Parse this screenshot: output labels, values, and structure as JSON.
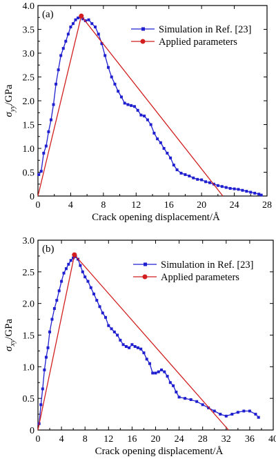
{
  "colors": {
    "simulation": "#1f1fd0",
    "applied": "#d21e1e"
  },
  "chart_data": [
    {
      "type": "line",
      "panel_label": "(a)",
      "xlabel": "Crack opening displacement/Å",
      "ylabel_main": "σ",
      "ylabel_sub": "yy",
      "ylabel_unit": "/GPa",
      "xlim": [
        0,
        28
      ],
      "ylim": [
        0,
        4.0
      ],
      "xticks": [
        "0",
        "4",
        "8",
        "12",
        "16",
        "20",
        "24",
        "28"
      ],
      "yticks": [
        "0",
        "0.5",
        "1.0",
        "1.5",
        "2.0",
        "2.5",
        "3.0",
        "3.5",
        "4.0"
      ],
      "legend_position": "top-right",
      "series": [
        {
          "name": "Simulation in Ref. [23]",
          "marker": "square",
          "color": "#1f1fd0",
          "x": [
            0.1,
            0.4,
            0.7,
            1.0,
            1.3,
            1.6,
            1.9,
            2.2,
            2.5,
            2.8,
            3.1,
            3.4,
            3.7,
            4.0,
            4.3,
            4.6,
            4.9,
            5.2,
            5.5,
            5.8,
            6.2,
            6.6,
            7.0,
            7.4,
            7.8,
            8.2,
            8.6,
            9.0,
            9.4,
            9.8,
            10.2,
            10.6,
            11.0,
            11.4,
            11.8,
            12.2,
            12.6,
            13.0,
            13.4,
            13.8,
            14.2,
            14.6,
            15.0,
            15.4,
            15.8,
            16.2,
            16.6,
            17.0,
            17.5,
            18.0,
            18.5,
            19.0,
            19.5,
            20.0,
            20.5,
            21.0,
            21.5,
            22.0,
            22.5,
            23.0,
            23.5,
            24.0,
            24.5,
            25.0,
            25.5,
            26.0,
            26.5,
            27.0,
            27.3
          ],
          "y": [
            0.45,
            0.52,
            0.9,
            1.05,
            1.35,
            1.6,
            1.92,
            2.35,
            2.65,
            2.95,
            3.1,
            3.25,
            3.4,
            3.55,
            3.62,
            3.7,
            3.74,
            3.76,
            3.72,
            3.68,
            3.7,
            3.62,
            3.55,
            3.4,
            3.2,
            2.95,
            2.7,
            2.5,
            2.35,
            2.2,
            2.08,
            1.95,
            1.92,
            1.9,
            1.88,
            1.8,
            1.7,
            1.68,
            1.6,
            1.5,
            1.32,
            1.2,
            1.12,
            1.0,
            0.9,
            0.8,
            0.65,
            0.55,
            0.48,
            0.45,
            0.42,
            0.38,
            0.35,
            0.34,
            0.3,
            0.28,
            0.25,
            0.22,
            0.2,
            0.18,
            0.16,
            0.15,
            0.14,
            0.12,
            0.1,
            0.08,
            0.06,
            0.04,
            0.02
          ]
        },
        {
          "name": "Applied parameters",
          "marker": "circle",
          "color": "#d21e1e",
          "x": [
            0,
            5.3,
            22.6
          ],
          "y": [
            0,
            3.78,
            0
          ]
        }
      ]
    },
    {
      "type": "line",
      "panel_label": "(b)",
      "xlabel": "Crack opening displacement/Å",
      "ylabel_main": "σ",
      "ylabel_sub": "xy",
      "ylabel_unit": "/GPa",
      "xlim": [
        0,
        40
      ],
      "ylim": [
        0,
        3.0
      ],
      "xticks": [
        "0",
        "4",
        "8",
        "12",
        "16",
        "20",
        "24",
        "28",
        "32",
        "36",
        "40"
      ],
      "yticks": [
        "0",
        "0.5",
        "1.0",
        "1.5",
        "2.0",
        "2.5",
        "3.0"
      ],
      "legend_position": "top-right",
      "series": [
        {
          "name": "Simulation in Ref. [23]",
          "marker": "square",
          "color": "#1f1fd0",
          "x": [
            0.2,
            0.5,
            0.8,
            1.1,
            1.4,
            1.7,
            2.0,
            2.4,
            2.8,
            3.2,
            3.6,
            4.0,
            4.4,
            4.8,
            5.2,
            5.6,
            6.0,
            6.4,
            6.8,
            7.2,
            7.6,
            8.0,
            8.5,
            9.0,
            9.5,
            10.0,
            10.5,
            11.0,
            11.5,
            12.0,
            12.5,
            13.0,
            13.5,
            14.0,
            14.5,
            15.0,
            15.5,
            16.0,
            16.5,
            17.0,
            17.5,
            18.0,
            18.5,
            19.0,
            19.5,
            20.0,
            20.5,
            21.0,
            21.5,
            22.0,
            22.5,
            23.0,
            23.5,
            24.0,
            25.0,
            26.0,
            27.0,
            28.0,
            29.0,
            30.0,
            31.0,
            32.0,
            33.0,
            34.0,
            35.0,
            36.0,
            37.0,
            37.5
          ],
          "y": [
            0.1,
            0.4,
            0.65,
            0.95,
            1.15,
            1.3,
            1.55,
            1.75,
            1.92,
            2.05,
            2.2,
            2.35,
            2.48,
            2.55,
            2.62,
            2.68,
            2.72,
            2.74,
            2.7,
            2.6,
            2.5,
            2.42,
            2.35,
            2.25,
            2.15,
            2.05,
            1.95,
            1.85,
            1.78,
            1.65,
            1.6,
            1.55,
            1.5,
            1.42,
            1.35,
            1.32,
            1.3,
            1.35,
            1.32,
            1.3,
            1.28,
            1.22,
            1.12,
            1.05,
            0.9,
            0.9,
            0.92,
            0.95,
            0.92,
            0.85,
            0.75,
            0.7,
            0.6,
            0.52,
            0.5,
            0.48,
            0.45,
            0.4,
            0.35,
            0.3,
            0.25,
            0.22,
            0.25,
            0.28,
            0.3,
            0.3,
            0.25,
            0.2
          ]
        },
        {
          "name": "Applied parameters",
          "marker": "circle",
          "color": "#d21e1e",
          "x": [
            0,
            6.2,
            32.4
          ],
          "y": [
            0,
            2.77,
            0
          ]
        }
      ]
    }
  ]
}
